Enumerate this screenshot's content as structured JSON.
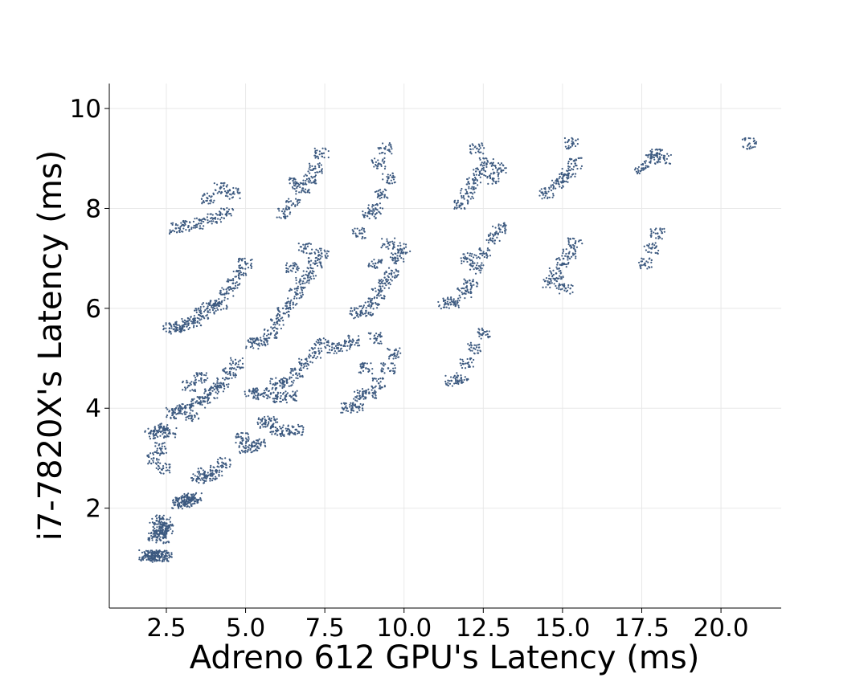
{
  "chart_data": {
    "type": "scatter",
    "title": "",
    "xlabel": "Adreno 612 GPU's Latency (ms)",
    "ylabel": "i7-7820X's Latency (ms)",
    "xlim": [
      0.7,
      21.9
    ],
    "ylim": [
      0,
      10.5
    ],
    "xticks": [
      2.5,
      5.0,
      7.5,
      10.0,
      12.5,
      15.0,
      17.5,
      20.0
    ],
    "xtick_labels": [
      "2.5",
      "5.0",
      "7.5",
      "10.0",
      "12.5",
      "15.0",
      "17.5",
      "20.0"
    ],
    "yticks": [
      2,
      4,
      6,
      8,
      10
    ],
    "ytick_labels": [
      "2",
      "4",
      "6",
      "8",
      "10"
    ],
    "grid": true,
    "marker_color": "#3d5a80",
    "series": [
      {
        "points": [
          [
            1.95,
            1.04
          ],
          [
            2.05,
            1.05
          ],
          [
            2.15,
            1.03
          ],
          [
            2.25,
            1.05
          ],
          [
            2.35,
            1.04
          ],
          [
            1.85,
            1.05
          ],
          [
            2.45,
            1.04
          ],
          [
            2.15,
            1.45
          ],
          [
            2.25,
            1.55
          ],
          [
            2.35,
            1.62
          ],
          [
            2.45,
            1.7
          ],
          [
            2.2,
            1.75
          ],
          [
            2.3,
            1.5
          ],
          [
            2.5,
            1.6
          ],
          [
            2.4,
            1.4
          ],
          [
            2.9,
            2.1
          ],
          [
            3.0,
            2.15
          ],
          [
            3.1,
            2.12
          ],
          [
            3.2,
            2.18
          ],
          [
            3.3,
            2.15
          ],
          [
            3.4,
            2.2
          ],
          [
            3.5,
            2.6
          ],
          [
            3.7,
            2.7
          ],
          [
            3.9,
            2.65
          ],
          [
            4.1,
            2.75
          ],
          [
            4.3,
            2.9
          ],
          [
            2.0,
            3.5
          ],
          [
            2.2,
            3.55
          ],
          [
            2.4,
            3.6
          ],
          [
            2.6,
            3.52
          ],
          [
            2.3,
            3.2
          ],
          [
            2.1,
            3.0
          ],
          [
            2.4,
            2.8
          ],
          [
            2.7,
            3.9
          ],
          [
            2.9,
            3.95
          ],
          [
            3.1,
            4.0
          ],
          [
            3.3,
            3.85
          ],
          [
            3.5,
            4.1
          ],
          [
            3.7,
            4.2
          ],
          [
            3.9,
            4.3
          ],
          [
            4.1,
            4.4
          ],
          [
            4.3,
            4.5
          ],
          [
            4.5,
            4.7
          ],
          [
            4.7,
            4.9
          ],
          [
            3.2,
            4.45
          ],
          [
            3.6,
            4.6
          ],
          [
            2.6,
            5.6
          ],
          [
            2.8,
            5.62
          ],
          [
            3.0,
            5.65
          ],
          [
            3.2,
            5.7
          ],
          [
            3.4,
            5.75
          ],
          [
            3.6,
            5.9
          ],
          [
            3.8,
            6.0
          ],
          [
            4.0,
            6.05
          ],
          [
            4.2,
            6.1
          ],
          [
            4.4,
            6.3
          ],
          [
            4.6,
            6.5
          ],
          [
            4.8,
            6.7
          ],
          [
            5.0,
            6.9
          ],
          [
            2.8,
            7.6
          ],
          [
            3.2,
            7.65
          ],
          [
            3.6,
            7.7
          ],
          [
            4.0,
            7.8
          ],
          [
            4.4,
            7.9
          ],
          [
            3.8,
            8.2
          ],
          [
            4.2,
            8.4
          ],
          [
            4.6,
            8.3
          ],
          [
            5.0,
            3.2
          ],
          [
            5.2,
            3.25
          ],
          [
            5.4,
            3.3
          ],
          [
            4.9,
            3.4
          ],
          [
            5.6,
            3.7
          ],
          [
            5.8,
            3.75
          ],
          [
            6.0,
            3.55
          ],
          [
            6.3,
            3.55
          ],
          [
            6.6,
            3.57
          ],
          [
            5.2,
            4.3
          ],
          [
            5.5,
            4.28
          ],
          [
            5.8,
            4.3
          ],
          [
            6.1,
            4.2
          ],
          [
            6.4,
            4.25
          ],
          [
            6.0,
            4.5
          ],
          [
            6.3,
            4.55
          ],
          [
            6.6,
            4.7
          ],
          [
            6.9,
            4.9
          ],
          [
            7.2,
            5.1
          ],
          [
            7.4,
            5.3
          ],
          [
            5.2,
            5.3
          ],
          [
            5.5,
            5.35
          ],
          [
            5.8,
            5.5
          ],
          [
            6.0,
            5.7
          ],
          [
            6.2,
            5.9
          ],
          [
            6.4,
            6.1
          ],
          [
            6.6,
            6.3
          ],
          [
            6.8,
            6.5
          ],
          [
            7.0,
            6.7
          ],
          [
            7.2,
            6.9
          ],
          [
            7.4,
            7.1
          ],
          [
            6.5,
            6.8
          ],
          [
            6.9,
            7.2
          ],
          [
            6.2,
            7.9
          ],
          [
            6.5,
            8.1
          ],
          [
            6.8,
            8.4
          ],
          [
            7.0,
            8.6
          ],
          [
            7.2,
            8.8
          ],
          [
            6.6,
            8.5
          ],
          [
            7.4,
            9.1
          ],
          [
            7.8,
            5.2
          ],
          [
            8.1,
            5.25
          ],
          [
            8.4,
            5.35
          ],
          [
            8.2,
            4.0
          ],
          [
            8.5,
            4.02
          ],
          [
            8.6,
            4.25
          ],
          [
            8.9,
            4.3
          ],
          [
            9.2,
            4.5
          ],
          [
            9.5,
            4.8
          ],
          [
            9.7,
            5.1
          ],
          [
            8.8,
            4.8
          ],
          [
            9.1,
            5.4
          ],
          [
            8.5,
            5.9
          ],
          [
            8.8,
            5.95
          ],
          [
            9.0,
            6.1
          ],
          [
            9.2,
            6.3
          ],
          [
            9.4,
            6.5
          ],
          [
            9.6,
            6.7
          ],
          [
            9.8,
            7.0
          ],
          [
            10.0,
            7.2
          ],
          [
            9.1,
            6.9
          ],
          [
            9.5,
            7.3
          ],
          [
            8.6,
            7.5
          ],
          [
            8.9,
            7.9
          ],
          [
            9.1,
            8.0
          ],
          [
            9.3,
            8.3
          ],
          [
            9.5,
            8.6
          ],
          [
            9.2,
            8.9
          ],
          [
            9.4,
            9.2
          ],
          [
            11.5,
            4.55
          ],
          [
            11.8,
            4.6
          ],
          [
            12.0,
            4.9
          ],
          [
            12.2,
            5.2
          ],
          [
            12.5,
            5.5
          ],
          [
            11.3,
            6.1
          ],
          [
            11.6,
            6.12
          ],
          [
            11.9,
            6.3
          ],
          [
            12.1,
            6.5
          ],
          [
            12.3,
            6.8
          ],
          [
            12.5,
            7.1
          ],
          [
            12.8,
            7.4
          ],
          [
            13.0,
            7.6
          ],
          [
            12.0,
            7.0
          ],
          [
            11.8,
            8.1
          ],
          [
            12.0,
            8.3
          ],
          [
            12.2,
            8.5
          ],
          [
            12.4,
            8.7
          ],
          [
            12.6,
            8.9
          ],
          [
            12.8,
            8.6
          ],
          [
            13.0,
            8.8
          ],
          [
            12.3,
            9.2
          ],
          [
            14.6,
            6.5
          ],
          [
            14.8,
            6.7
          ],
          [
            15.0,
            6.9
          ],
          [
            15.2,
            7.1
          ],
          [
            15.4,
            7.3
          ],
          [
            15.1,
            6.4
          ],
          [
            14.5,
            8.3
          ],
          [
            14.8,
            8.5
          ],
          [
            15.0,
            8.6
          ],
          [
            15.2,
            8.7
          ],
          [
            15.4,
            8.9
          ],
          [
            15.3,
            9.3
          ],
          [
            17.6,
            6.9
          ],
          [
            17.8,
            7.2
          ],
          [
            18.0,
            7.5
          ],
          [
            17.5,
            8.8
          ],
          [
            17.8,
            9.0
          ],
          [
            18.0,
            9.1
          ],
          [
            18.2,
            9.0
          ],
          [
            20.9,
            9.3
          ]
        ]
      }
    ]
  }
}
